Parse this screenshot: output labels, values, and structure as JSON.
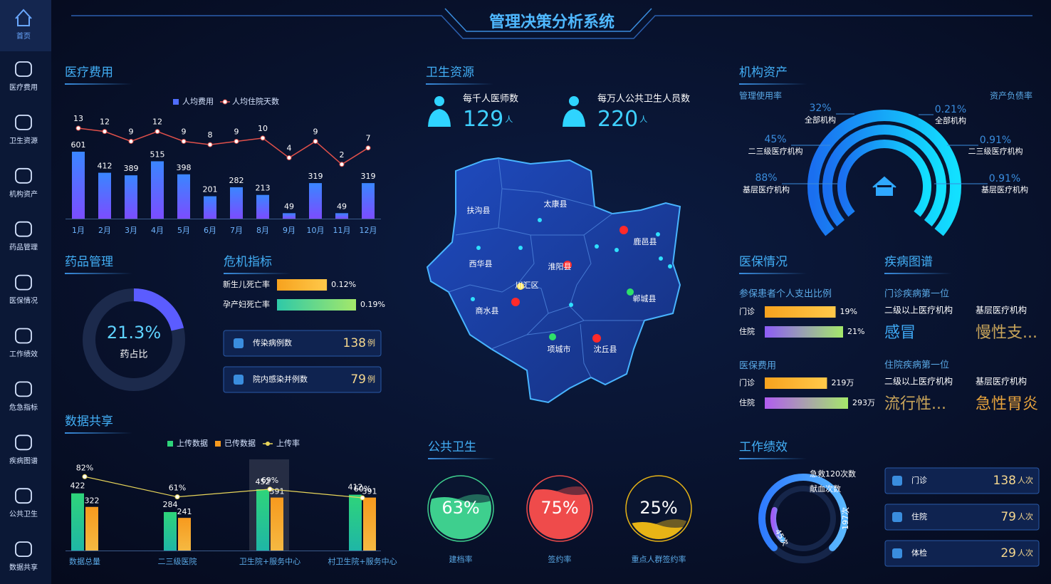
{
  "header": {
    "title": "管理决策分析系统"
  },
  "nav": [
    "首页",
    "医疗费用",
    "卫生资源",
    "机构资产",
    "药品管理",
    "医保情况",
    "工作绩效",
    "危急指标",
    "疾病图谱",
    "公共卫生",
    "数据共享"
  ],
  "panels": {
    "cost": "医疗费用",
    "resources": "卫生资源",
    "assets": "机构资产",
    "drug": "药品管理",
    "crisis": "危机指标",
    "insurance": "医保情况",
    "disease": "疾病图谱",
    "share": "数据共享",
    "public": "公共卫生",
    "performance": "工作绩效"
  },
  "resources": [
    {
      "label": "每千人医师数",
      "value": 129,
      "unit": "人"
    },
    {
      "label": "每万人公共卫生人员数",
      "value": 220,
      "unit": "人"
    }
  ],
  "map": {
    "regions": [
      "扶沟县",
      "太康县",
      "西华县",
      "淮阳县",
      "鹿邑县",
      "川汇区",
      "商水县",
      "郸城县",
      "项城市",
      "沈丘县"
    ]
  },
  "assets": {
    "left_title": "管理使用率",
    "right_title": "资产负债率",
    "left": [
      {
        "value": "32%",
        "name": "全部机构"
      },
      {
        "value": "45%",
        "name": "二三级医疗机构"
      },
      {
        "value": "88%",
        "name": "基层医疗机构"
      }
    ],
    "right": [
      {
        "value": "0.21%",
        "name": "全部机构"
      },
      {
        "value": "0.91%",
        "name": "二三级医疗机构"
      },
      {
        "value": "0.91%",
        "name": "基层医疗机构"
      }
    ]
  },
  "crisis_cards": [
    {
      "label": "传染病例数",
      "value": 138,
      "unit": "例"
    },
    {
      "label": "院内感染并例数",
      "value": 79,
      "unit": "例"
    }
  ],
  "disease": {
    "groups": [
      {
        "title": "门诊疾病第一位",
        "items": [
          {
            "org": "二级以上医疗机构",
            "name": "感冒"
          },
          {
            "org": "基层医疗机构",
            "name": "慢性支..."
          }
        ]
      },
      {
        "title": "住院疾病第一位",
        "items": [
          {
            "org": "二级以上医疗机构",
            "name": "流行性..."
          },
          {
            "org": "基层医疗机构",
            "name": "急性胃炎"
          }
        ]
      }
    ]
  },
  "performance_cards": [
    {
      "label": "门诊",
      "value": 138,
      "unit": "人次"
    },
    {
      "label": "住院",
      "value": 79,
      "unit": "人次"
    },
    {
      "label": "体检",
      "value": 29,
      "unit": "人次"
    }
  ],
  "chart_data": [
    {
      "type": "bar-line",
      "categories": [
        "1月",
        "2月",
        "3月",
        "4月",
        "5月",
        "6月",
        "7月",
        "8月",
        "9月",
        "10月",
        "11月",
        "12月"
      ],
      "series": [
        {
          "name": "人均费用",
          "color": "#4f6dff",
          "values": [
            601,
            412,
            389,
            515,
            398,
            201,
            282,
            213,
            49,
            319,
            49,
            319
          ]
        },
        {
          "name": "人均住院天数",
          "color": "#e0504a",
          "values": [
            13,
            12,
            9,
            12,
            9,
            8,
            9,
            10,
            4,
            9,
            2,
            7
          ]
        }
      ]
    },
    {
      "type": "donut",
      "categories": [
        "药占比"
      ],
      "values": [
        21.3
      ],
      "value_labels": [
        "21.3%"
      ],
      "color": "#5b5cff"
    },
    {
      "type": "hbar",
      "categories": [
        "新生儿死亡率",
        "孕产妇死亡率"
      ],
      "values": [
        0.12,
        0.19
      ],
      "value_labels": [
        "0.12%",
        "0.19%"
      ],
      "colors": [
        "#f7a21e",
        "#2ec9a8"
      ]
    },
    {
      "type": "hbar",
      "title": "参保患者个人支出比例",
      "categories": [
        "门诊",
        "住院"
      ],
      "values": [
        19,
        21
      ],
      "value_labels": [
        "19%",
        "21%"
      ],
      "colors": [
        "#f7a21e",
        "#8e5cf7"
      ]
    },
    {
      "type": "hbar",
      "title": "医保费用",
      "categories": [
        "门诊",
        "住院"
      ],
      "values": [
        2190000,
        2930000
      ],
      "value_labels": [
        "219万",
        "293万"
      ],
      "colors": [
        "#f7a21e",
        "#b05cf0"
      ]
    },
    {
      "type": "grouped-bar-line",
      "categories": [
        "数据总量",
        "二三级医院",
        "卫生院+服务中心",
        "村卫生院+服务中心"
      ],
      "series": [
        {
          "name": "上传数据",
          "color": "#2ed47a",
          "values": [
            422,
            284,
            452,
            412
          ]
        },
        {
          "name": "已传数据",
          "color": "#f79a1e",
          "values": [
            322,
            241,
            391,
            391
          ]
        },
        {
          "name": "上传率",
          "color": "#e8d55a",
          "axis": "y2",
          "values": [
            82,
            61,
            69,
            60
          ],
          "value_labels": [
            "82%",
            "61%",
            "69%",
            "60%"
          ]
        }
      ]
    },
    {
      "type": "liquid",
      "categories": [
        "建档率",
        "签约率",
        "重点人群签约率"
      ],
      "values": [
        63,
        75,
        25
      ],
      "value_labels": [
        "63%",
        "75%",
        "25%"
      ],
      "colors": [
        "#3ecf8e",
        "#ef4b4b",
        "#e7b416"
      ]
    },
    {
      "type": "rings",
      "categories": [
        "急救120次数",
        "献血次数"
      ],
      "values": [
        197,
        45
      ],
      "value_labels": [
        "197次",
        "45次"
      ],
      "colors": [
        "#2f7bff",
        "#a05cf5"
      ]
    }
  ]
}
